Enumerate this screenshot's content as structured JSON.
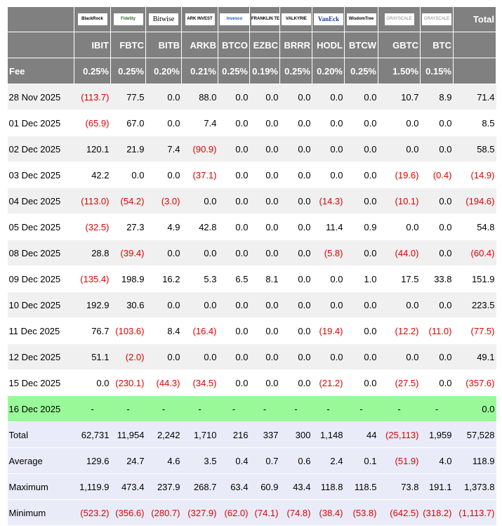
{
  "header": {
    "logos": [
      "BlackRock",
      "Fidelity",
      "Bitwise",
      "ARK INVEST",
      "Invesco",
      "FRANKLIN TEMPLETON",
      "VALKYRIE",
      "VanEck",
      "WisdomTree",
      "GRAYSCALE",
      "GRAYSCALE"
    ],
    "total_label": "Total",
    "tickers": [
      "IBIT",
      "FBTC",
      "BITB",
      "ARKB",
      "BTCO",
      "EZBC",
      "BRRR",
      "HODL",
      "BTCW",
      "GBTC",
      "BTC"
    ],
    "fee_label": "Fee",
    "fees": [
      "0.25%",
      "0.25%",
      "0.20%",
      "0.21%",
      "0.25%",
      "0.19%",
      "0.25%",
      "0.20%",
      "0.25%",
      "1.50%",
      "0.15%"
    ]
  },
  "rows": [
    {
      "date": "28 Nov 2025",
      "values": [
        "(113.7)",
        "77.5",
        "0.0",
        "88.0",
        "0.0",
        "0.0",
        "0.0",
        "0.0",
        "0.0",
        "10.7",
        "8.9",
        "71.4"
      ]
    },
    {
      "date": "01 Dec 2025",
      "values": [
        "(65.9)",
        "67.0",
        "0.0",
        "7.4",
        "0.0",
        "0.0",
        "0.0",
        "0.0",
        "0.0",
        "0.0",
        "0.0",
        "8.5"
      ]
    },
    {
      "date": "02 Dec 2025",
      "values": [
        "120.1",
        "21.9",
        "7.4",
        "(90.9)",
        "0.0",
        "0.0",
        "0.0",
        "0.0",
        "0.0",
        "0.0",
        "0.0",
        "58.5"
      ]
    },
    {
      "date": "03 Dec 2025",
      "values": [
        "42.2",
        "0.0",
        "0.0",
        "(37.1)",
        "0.0",
        "0.0",
        "0.0",
        "0.0",
        "0.0",
        "(19.6)",
        "(0.4)",
        "(14.9)"
      ]
    },
    {
      "date": "04 Dec 2025",
      "values": [
        "(113.0)",
        "(54.2)",
        "(3.0)",
        "0.0",
        "0.0",
        "0.0",
        "0.0",
        "(14.3)",
        "0.0",
        "(10.1)",
        "0.0",
        "(194.6)"
      ]
    },
    {
      "date": "05 Dec 2025",
      "values": [
        "(32.5)",
        "27.3",
        "4.9",
        "42.8",
        "0.0",
        "0.0",
        "0.0",
        "11.4",
        "0.9",
        "0.0",
        "0.0",
        "54.8"
      ]
    },
    {
      "date": "08 Dec 2025",
      "values": [
        "28.8",
        "(39.4)",
        "0.0",
        "0.0",
        "0.0",
        "0.0",
        "0.0",
        "(5.8)",
        "0.0",
        "(44.0)",
        "0.0",
        "(60.4)"
      ]
    },
    {
      "date": "09 Dec 2025",
      "values": [
        "(135.4)",
        "198.9",
        "16.2",
        "5.3",
        "6.5",
        "8.1",
        "0.0",
        "0.0",
        "1.0",
        "17.5",
        "33.8",
        "151.9"
      ]
    },
    {
      "date": "10 Dec 2025",
      "values": [
        "192.9",
        "30.6",
        "0.0",
        "0.0",
        "0.0",
        "0.0",
        "0.0",
        "0.0",
        "0.0",
        "0.0",
        "0.0",
        "223.5"
      ]
    },
    {
      "date": "11 Dec 2025",
      "values": [
        "76.7",
        "(103.6)",
        "8.4",
        "(16.4)",
        "0.0",
        "0.0",
        "0.0",
        "(19.4)",
        "0.0",
        "(12.2)",
        "(11.0)",
        "(77.5)"
      ]
    },
    {
      "date": "12 Dec 2025",
      "values": [
        "51.1",
        "(2.0)",
        "0.0",
        "0.0",
        "0.0",
        "0.0",
        "0.0",
        "0.0",
        "0.0",
        "0.0",
        "0.0",
        "49.1"
      ]
    },
    {
      "date": "15 Dec 2025",
      "values": [
        "0.0",
        "(230.1)",
        "(44.3)",
        "(34.5)",
        "0.0",
        "0.0",
        "0.0",
        "(21.2)",
        "0.0",
        "(27.5)",
        "0.0",
        "(357.6)"
      ]
    },
    {
      "date": "16 Dec 2025",
      "today": true,
      "values": [
        "-",
        "-",
        "-",
        "-",
        "-",
        "-",
        "-",
        "-",
        "-",
        "-",
        "-",
        "0.0"
      ]
    }
  ],
  "summary": [
    {
      "label": "Total",
      "values": [
        "62,731",
        "11,954",
        "2,242",
        "1,710",
        "216",
        "337",
        "300",
        "1,148",
        "44",
        "(25,113)",
        "1,959",
        "57,528"
      ]
    },
    {
      "label": "Average",
      "values": [
        "129.6",
        "24.7",
        "4.6",
        "3.5",
        "0.4",
        "0.7",
        "0.6",
        "2.4",
        "0.1",
        "(51.9)",
        "4.0",
        "118.9"
      ]
    },
    {
      "label": "Maximum",
      "values": [
        "1,119.9",
        "473.4",
        "237.9",
        "268.7",
        "63.4",
        "60.9",
        "43.4",
        "118.8",
        "118.5",
        "73.8",
        "191.1",
        "1,373.8"
      ]
    },
    {
      "label": "Minimum",
      "values": [
        "(523.2)",
        "(356.6)",
        "(280.7)",
        "(327.9)",
        "(62.0)",
        "(74.1)",
        "(74.8)",
        "(38.4)",
        "(53.8)",
        "(642.5)",
        "(318.2)",
        "(1,113.7)"
      ]
    }
  ]
}
